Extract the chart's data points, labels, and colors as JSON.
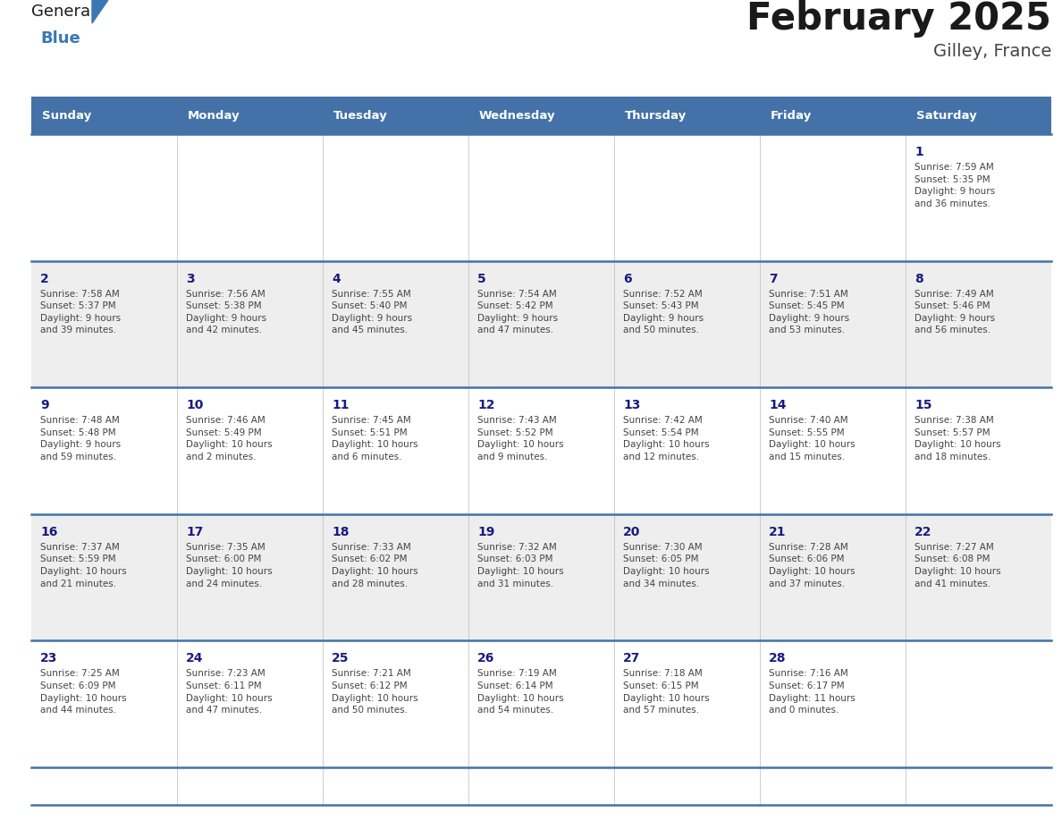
{
  "title": "February 2025",
  "subtitle": "Gilley, France",
  "days_of_week": [
    "Sunday",
    "Monday",
    "Tuesday",
    "Wednesday",
    "Thursday",
    "Friday",
    "Saturday"
  ],
  "header_bg": "#4472a8",
  "header_text": "#ffffff",
  "row_bg_white": "#ffffff",
  "row_bg_gray": "#eeeeee",
  "cell_text_color": "#444444",
  "day_number_color": "#1a1a80",
  "line_color": "#4472a8",
  "title_color": "#1a1a1a",
  "subtitle_color": "#444444",
  "logo_general_color": "#1a1a1a",
  "logo_blue_color": "#3a78b5",
  "calendar_data": [
    [
      null,
      null,
      null,
      null,
      null,
      null,
      1
    ],
    [
      2,
      3,
      4,
      5,
      6,
      7,
      8
    ],
    [
      9,
      10,
      11,
      12,
      13,
      14,
      15
    ],
    [
      16,
      17,
      18,
      19,
      20,
      21,
      22
    ],
    [
      23,
      24,
      25,
      26,
      27,
      28,
      null
    ]
  ],
  "row_bg_colors": [
    "#ffffff",
    "#eeeeee",
    "#ffffff",
    "#eeeeee",
    "#ffffff"
  ],
  "sunrise_data": {
    "1": "Sunrise: 7:59 AM\nSunset: 5:35 PM\nDaylight: 9 hours\nand 36 minutes.",
    "2": "Sunrise: 7:58 AM\nSunset: 5:37 PM\nDaylight: 9 hours\nand 39 minutes.",
    "3": "Sunrise: 7:56 AM\nSunset: 5:38 PM\nDaylight: 9 hours\nand 42 minutes.",
    "4": "Sunrise: 7:55 AM\nSunset: 5:40 PM\nDaylight: 9 hours\nand 45 minutes.",
    "5": "Sunrise: 7:54 AM\nSunset: 5:42 PM\nDaylight: 9 hours\nand 47 minutes.",
    "6": "Sunrise: 7:52 AM\nSunset: 5:43 PM\nDaylight: 9 hours\nand 50 minutes.",
    "7": "Sunrise: 7:51 AM\nSunset: 5:45 PM\nDaylight: 9 hours\nand 53 minutes.",
    "8": "Sunrise: 7:49 AM\nSunset: 5:46 PM\nDaylight: 9 hours\nand 56 minutes.",
    "9": "Sunrise: 7:48 AM\nSunset: 5:48 PM\nDaylight: 9 hours\nand 59 minutes.",
    "10": "Sunrise: 7:46 AM\nSunset: 5:49 PM\nDaylight: 10 hours\nand 2 minutes.",
    "11": "Sunrise: 7:45 AM\nSunset: 5:51 PM\nDaylight: 10 hours\nand 6 minutes.",
    "12": "Sunrise: 7:43 AM\nSunset: 5:52 PM\nDaylight: 10 hours\nand 9 minutes.",
    "13": "Sunrise: 7:42 AM\nSunset: 5:54 PM\nDaylight: 10 hours\nand 12 minutes.",
    "14": "Sunrise: 7:40 AM\nSunset: 5:55 PM\nDaylight: 10 hours\nand 15 minutes.",
    "15": "Sunrise: 7:38 AM\nSunset: 5:57 PM\nDaylight: 10 hours\nand 18 minutes.",
    "16": "Sunrise: 7:37 AM\nSunset: 5:59 PM\nDaylight: 10 hours\nand 21 minutes.",
    "17": "Sunrise: 7:35 AM\nSunset: 6:00 PM\nDaylight: 10 hours\nand 24 minutes.",
    "18": "Sunrise: 7:33 AM\nSunset: 6:02 PM\nDaylight: 10 hours\nand 28 minutes.",
    "19": "Sunrise: 7:32 AM\nSunset: 6:03 PM\nDaylight: 10 hours\nand 31 minutes.",
    "20": "Sunrise: 7:30 AM\nSunset: 6:05 PM\nDaylight: 10 hours\nand 34 minutes.",
    "21": "Sunrise: 7:28 AM\nSunset: 6:06 PM\nDaylight: 10 hours\nand 37 minutes.",
    "22": "Sunrise: 7:27 AM\nSunset: 6:08 PM\nDaylight: 10 hours\nand 41 minutes.",
    "23": "Sunrise: 7:25 AM\nSunset: 6:09 PM\nDaylight: 10 hours\nand 44 minutes.",
    "24": "Sunrise: 7:23 AM\nSunset: 6:11 PM\nDaylight: 10 hours\nand 47 minutes.",
    "25": "Sunrise: 7:21 AM\nSunset: 6:12 PM\nDaylight: 10 hours\nand 50 minutes.",
    "26": "Sunrise: 7:19 AM\nSunset: 6:14 PM\nDaylight: 10 hours\nand 54 minutes.",
    "27": "Sunrise: 7:18 AM\nSunset: 6:15 PM\nDaylight: 10 hours\nand 57 minutes.",
    "28": "Sunrise: 7:16 AM\nSunset: 6:17 PM\nDaylight: 11 hours\nand 0 minutes."
  }
}
